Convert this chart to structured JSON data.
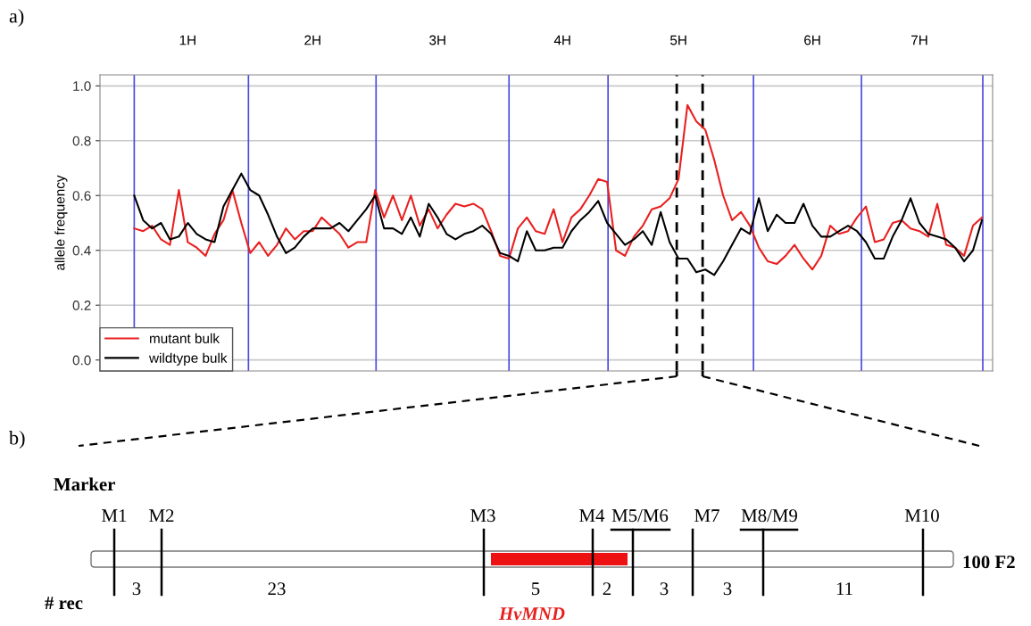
{
  "chart_data": [
    {
      "type": "line",
      "title": "a)",
      "ylabel": "allele frequency",
      "categories": [
        null,
        null,
        null,
        null,
        null,
        null,
        "1H",
        null,
        null,
        null,
        null,
        null,
        null,
        null,
        null,
        null,
        null,
        null,
        null,
        null,
        "2H",
        null,
        null,
        null,
        null,
        null,
        null,
        null,
        null,
        null,
        null,
        null,
        null,
        null,
        "3H",
        null,
        null,
        null,
        null,
        null,
        null,
        null,
        null,
        null,
        null,
        null,
        null,
        null,
        "4H",
        null,
        null,
        null,
        null,
        null,
        null,
        null,
        null,
        null,
        null,
        null,
        null,
        "5H",
        null,
        null,
        null,
        null,
        null,
        null,
        null,
        null,
        null,
        null,
        null,
        null,
        null,
        null,
        "6H",
        null,
        null,
        null,
        null,
        null,
        null,
        null,
        null,
        null,
        null,
        null,
        "7H",
        null,
        null,
        null,
        null,
        null,
        null,
        null
      ],
      "series": [
        {
          "name": "mutant bulk",
          "color": "#e8201f",
          "values": [
            0.48,
            0.47,
            0.49,
            0.44,
            0.42,
            0.62,
            0.43,
            0.41,
            0.38,
            0.46,
            0.51,
            0.62,
            0.5,
            0.39,
            0.43,
            0.38,
            0.42,
            0.48,
            0.44,
            0.47,
            0.47,
            0.52,
            0.49,
            0.46,
            0.41,
            0.43,
            0.43,
            0.62,
            0.52,
            0.6,
            0.51,
            0.6,
            0.49,
            0.55,
            0.48,
            0.53,
            0.57,
            0.56,
            0.57,
            0.55,
            0.47,
            0.38,
            0.37,
            0.48,
            0.52,
            0.47,
            0.46,
            0.55,
            0.43,
            0.52,
            0.55,
            0.6,
            0.66,
            0.65,
            0.4,
            0.38,
            0.45,
            0.49,
            0.55,
            0.56,
            0.59,
            0.66,
            0.93,
            0.87,
            0.84,
            0.73,
            0.6,
            0.51,
            0.54,
            0.49,
            0.41,
            0.36,
            0.35,
            0.38,
            0.42,
            0.37,
            0.33,
            0.38,
            0.49,
            0.46,
            0.47,
            0.52,
            0.56,
            0.43,
            0.44,
            0.5,
            0.51,
            0.48,
            0.47,
            0.45,
            0.57,
            0.42,
            0.41,
            0.38,
            0.49,
            0.52
          ]
        },
        {
          "name": "wildtype bulk",
          "color": "#000000",
          "values": [
            0.6,
            0.51,
            0.48,
            0.5,
            0.44,
            0.45,
            0.5,
            0.46,
            0.44,
            0.43,
            0.56,
            0.62,
            0.68,
            0.62,
            0.6,
            0.53,
            0.45,
            0.39,
            0.41,
            0.45,
            0.48,
            0.48,
            0.48,
            0.5,
            0.47,
            0.51,
            0.55,
            0.6,
            0.48,
            0.48,
            0.46,
            0.52,
            0.45,
            0.57,
            0.52,
            0.46,
            0.44,
            0.46,
            0.47,
            0.49,
            0.46,
            0.39,
            0.38,
            0.36,
            0.47,
            0.4,
            0.4,
            0.41,
            0.41,
            0.47,
            0.51,
            0.54,
            0.58,
            0.5,
            0.46,
            0.42,
            0.44,
            0.47,
            0.42,
            0.54,
            0.43,
            0.37,
            0.37,
            0.32,
            0.33,
            0.31,
            0.36,
            0.42,
            0.48,
            0.46,
            0.59,
            0.47,
            0.53,
            0.5,
            0.5,
            0.57,
            0.49,
            0.45,
            0.45,
            0.47,
            0.49,
            0.47,
            0.43,
            0.37,
            0.37,
            0.45,
            0.51,
            0.59,
            0.5,
            0.46,
            0.45,
            0.44,
            0.41,
            0.36,
            0.4,
            0.51
          ]
        }
      ],
      "ylim": [
        -0.04,
        1.04
      ],
      "yticks": [
        {
          "value": 0,
          "label": "0.0"
        },
        {
          "value": 0.2,
          "label": "0.2"
        },
        {
          "value": 0.4,
          "label": "0.4"
        },
        {
          "value": 0.6,
          "label": "0.6"
        },
        {
          "value": 0.8,
          "label": "0.8"
        },
        {
          "value": 1,
          "label": "1.0"
        }
      ],
      "grid": "y",
      "legend": "bottom left"
    },
    {
      "type": "other",
      "title": "b)",
      "annotations": [
        "Marker",
        "M1",
        "M2",
        "M3",
        "M4",
        "M5/M6",
        "M7",
        "M8/M9",
        "M10",
        "# rec",
        "3",
        "23",
        "5",
        "2",
        "3",
        "3",
        "11",
        "100 F2",
        "HvMND"
      ]
    }
  ]
}
